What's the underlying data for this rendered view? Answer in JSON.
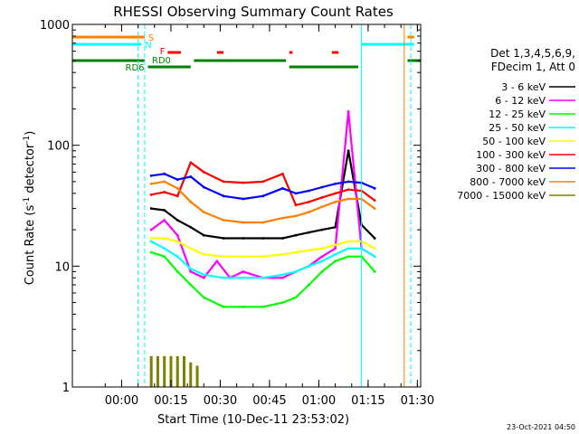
{
  "colors": {
    "axis": "#000000",
    "background": "#ffffff",
    "black": "#000000",
    "magenta": "#ff00ff",
    "green": "#00ff00",
    "cyan": "#00ffff",
    "yellow": "#ffff00",
    "red": "#ff0000",
    "blue": "#0000ff",
    "orange": "#ff8000",
    "olive": "#808000",
    "darkgreen": "#008000"
  },
  "chart_data": {
    "type": "line",
    "title": "RHESSI Observing Summary Count Rates",
    "xlabel": "Start Time (10-Dec-11 23:53:02)",
    "ylabel": "Count Rate (s",
    "ylabel_sup1": "-1",
    "ylabel_mid": " detector",
    "ylabel_sup2": "-1",
    "ylabel_end": ")",
    "yscale": "log",
    "ylim": [
      1,
      1000
    ],
    "yticks": [
      {
        "label": "1",
        "value": 1
      },
      {
        "label": "10",
        "value": 10
      },
      {
        "label": "100",
        "value": 100
      },
      {
        "label": "1000",
        "value": 1000
      }
    ],
    "xlim_minutes": [
      -8,
      98
    ],
    "xticks": [
      {
        "label": "00:00",
        "value": 7
      },
      {
        "label": "00:15",
        "value": 22
      },
      {
        "label": "00:30",
        "value": 37
      },
      {
        "label": "00:45",
        "value": 52
      },
      {
        "label": "01:00",
        "value": 67
      },
      {
        "label": "01:15",
        "value": 82
      },
      {
        "label": "01:30",
        "value": 97
      }
    ],
    "legend_header": [
      "Det 1,3,4,5,6,9,",
      "FDecim 1, Att 0"
    ],
    "legend_placement": "right",
    "series": [
      {
        "name": "3 - 6 keV",
        "color": "black",
        "x": [
          16,
          20,
          24,
          28,
          32,
          38,
          44,
          50,
          56,
          60,
          64,
          68,
          72,
          76,
          80,
          84
        ],
        "y": [
          30,
          29,
          24,
          21,
          18,
          17,
          17,
          17,
          17,
          18,
          19,
          20,
          21,
          90,
          22,
          17
        ]
      },
      {
        "name": "6 - 12 keV",
        "color": "magenta",
        "x": [
          16,
          20,
          24,
          28,
          32,
          36,
          40,
          44,
          50,
          56,
          60,
          64,
          68,
          72,
          76,
          80,
          84
        ],
        "y": [
          20,
          24,
          18,
          9,
          8,
          11,
          8,
          9,
          8,
          8,
          9,
          10,
          12,
          14,
          190,
          14,
          12
        ]
      },
      {
        "name": "12 - 25 keV",
        "color": "green",
        "x": [
          16,
          20,
          24,
          28,
          32,
          38,
          44,
          50,
          56,
          60,
          64,
          68,
          72,
          76,
          80,
          84
        ],
        "y": [
          13,
          12,
          9,
          7,
          5.5,
          4.6,
          4.6,
          4.6,
          5,
          5.5,
          7,
          9,
          11,
          12,
          12,
          9
        ]
      },
      {
        "name": "25 - 50 keV",
        "color": "cyan",
        "x": [
          16,
          20,
          24,
          28,
          32,
          38,
          44,
          50,
          56,
          60,
          64,
          68,
          72,
          76,
          80,
          84
        ],
        "y": [
          16,
          14,
          12,
          9.5,
          8.5,
          8,
          8,
          8,
          8.5,
          9,
          10,
          11,
          12.5,
          14,
          14,
          12
        ]
      },
      {
        "name": "50 - 100 keV",
        "color": "yellow",
        "x": [
          16,
          20,
          24,
          28,
          32,
          38,
          44,
          50,
          56,
          60,
          64,
          68,
          72,
          76,
          80,
          84
        ],
        "y": [
          17,
          17,
          16,
          14,
          12.5,
          12,
          12,
          12,
          12.5,
          13,
          13.5,
          14,
          15,
          16,
          16,
          14
        ]
      },
      {
        "name": "100 - 300 keV",
        "color": "red",
        "x": [
          16,
          20,
          24,
          28,
          32,
          38,
          44,
          50,
          56,
          60,
          64,
          68,
          72,
          76,
          80,
          84
        ],
        "y": [
          39,
          41,
          38,
          72,
          60,
          50,
          49,
          50,
          58,
          32,
          34,
          37,
          40,
          43,
          42,
          35
        ]
      },
      {
        "name": "300 - 800 keV",
        "color": "blue",
        "x": [
          16,
          20,
          24,
          28,
          32,
          38,
          44,
          50,
          56,
          60,
          64,
          68,
          72,
          76,
          80,
          84
        ],
        "y": [
          56,
          58,
          52,
          55,
          45,
          38,
          36,
          38,
          44,
          40,
          42,
          45,
          48,
          50,
          49,
          44
        ]
      },
      {
        "name": "800 - 7000 keV",
        "color": "orange",
        "x": [
          16,
          20,
          24,
          28,
          32,
          38,
          44,
          50,
          56,
          60,
          64,
          68,
          72,
          76,
          80,
          84
        ],
        "y": [
          48,
          50,
          44,
          34,
          28,
          24,
          23,
          23,
          25,
          26,
          28,
          31,
          34,
          36,
          36,
          30
        ]
      },
      {
        "name": "7000 - 15000 keV",
        "color": "olive",
        "x": [
          16,
          18,
          20,
          22,
          24,
          26,
          28,
          30
        ],
        "y": [
          1.8,
          1.8,
          1.8,
          1.8,
          1.8,
          1.8,
          1.6,
          1.5
        ]
      }
    ],
    "flag_bars": [
      {
        "label": "S",
        "color": "orange",
        "segments": [
          [
            -8,
            14
          ],
          [
            94,
            96
          ]
        ]
      },
      {
        "label": "N",
        "color": "cyan",
        "segments": [
          [
            -8,
            13
          ],
          [
            80,
            96
          ]
        ]
      },
      {
        "label": "F",
        "color": "red",
        "segments": [
          [
            21,
            25
          ],
          [
            36,
            38
          ],
          [
            58,
            59
          ],
          [
            71,
            73
          ]
        ]
      },
      {
        "label": "RD0",
        "color": "darkgreen",
        "segments": [
          [
            -8,
            14
          ],
          [
            29,
            57
          ],
          [
            94,
            98
          ]
        ]
      },
      {
        "label": "RD6",
        "color": "darkgreen",
        "segments": [
          [
            15,
            28
          ],
          [
            58,
            79
          ]
        ]
      }
    ],
    "vertical_lines": [
      {
        "x": 12,
        "color": "cyan",
        "dashed": true
      },
      {
        "x": 14,
        "color": "cyan",
        "dashed": true
      },
      {
        "x": 80,
        "color": "cyan",
        "dashed": false
      },
      {
        "x": 93,
        "color": "orange",
        "dashed": false
      },
      {
        "x": 95,
        "color": "cyan",
        "dashed": true
      }
    ]
  },
  "footer": {
    "date_stamp": "23-Oct-2021 04:50"
  }
}
